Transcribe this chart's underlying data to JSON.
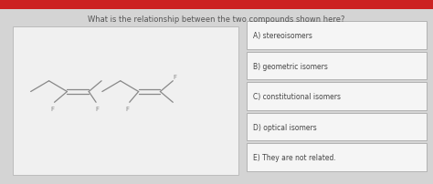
{
  "title": "What is the relationship between the two compounds shown here?",
  "title_fontsize": 6.0,
  "title_color": "#555555",
  "bg_color": "#d4d4d4",
  "box_color": "#f0f0f0",
  "box_border": "#bbbbbb",
  "red_bar_color": "#cc2222",
  "red_bar_height": 0.055,
  "answer_options": [
    "A) stereoisomers",
    "B) geometric isomers",
    "C) constitutional isomers",
    "D) optical isomers",
    "E) They are not related."
  ],
  "answer_fontsize": 5.5,
  "answer_text_color": "#444444",
  "answer_box_bg": "#f5f5f5",
  "answer_box_border": "#aaaaaa",
  "mol_line_color": "#888888",
  "mol_text_color": "#888888",
  "mol_fontsize": 5.0,
  "mol_lw": 0.9
}
